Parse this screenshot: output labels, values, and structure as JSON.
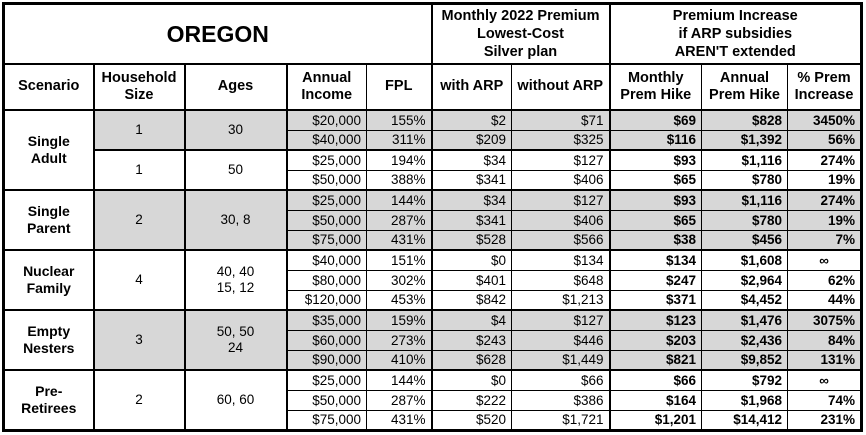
{
  "sections": {
    "title": "OREGON",
    "premium": "Monthly 2022 Premium\nLowest-Cost\nSilver plan",
    "increase": "Premium Increase\nif ARP subsidies\nAREN'T extended"
  },
  "columns": [
    "Scenario",
    "Household\nSize",
    "Ages",
    "Annual\nIncome",
    "FPL",
    "with ARP",
    "without ARP",
    "Monthly\nPrem Hike",
    "Annual\nPrem Hike",
    "% Prem\nIncrease"
  ],
  "colors": {
    "shade_gray": "#d7d7d7",
    "border_black": "#000000",
    "background": "#ffffff"
  },
  "groups": [
    {
      "scenario": "Single\nAdult",
      "subgroups": [
        {
          "household_size": "1",
          "ages": "30",
          "shaded": true,
          "rows": [
            {
              "income": "$20,000",
              "fpl": "155%",
              "with_arp": "$2",
              "without_arp": "$71",
              "monthly_hike": "$69",
              "annual_hike": "$828",
              "pct_increase": "3450%"
            },
            {
              "income": "$40,000",
              "fpl": "311%",
              "with_arp": "$209",
              "without_arp": "$325",
              "monthly_hike": "$116",
              "annual_hike": "$1,392",
              "pct_increase": "56%"
            }
          ]
        },
        {
          "household_size": "1",
          "ages": "50",
          "shaded": false,
          "rows": [
            {
              "income": "$25,000",
              "fpl": "194%",
              "with_arp": "$34",
              "without_arp": "$127",
              "monthly_hike": "$93",
              "annual_hike": "$1,116",
              "pct_increase": "274%"
            },
            {
              "income": "$50,000",
              "fpl": "388%",
              "with_arp": "$341",
              "without_arp": "$406",
              "monthly_hike": "$65",
              "annual_hike": "$780",
              "pct_increase": "19%"
            }
          ]
        }
      ]
    },
    {
      "scenario": "Single\nParent",
      "subgroups": [
        {
          "household_size": "2",
          "ages": "30, 8",
          "shaded": true,
          "rows": [
            {
              "income": "$25,000",
              "fpl": "144%",
              "with_arp": "$34",
              "without_arp": "$127",
              "monthly_hike": "$93",
              "annual_hike": "$1,116",
              "pct_increase": "274%"
            },
            {
              "income": "$50,000",
              "fpl": "287%",
              "with_arp": "$341",
              "without_arp": "$406",
              "monthly_hike": "$65",
              "annual_hike": "$780",
              "pct_increase": "19%"
            },
            {
              "income": "$75,000",
              "fpl": "431%",
              "with_arp": "$528",
              "without_arp": "$566",
              "monthly_hike": "$38",
              "annual_hike": "$456",
              "pct_increase": "7%"
            }
          ]
        }
      ]
    },
    {
      "scenario": "Nuclear\nFamily",
      "subgroups": [
        {
          "household_size": "4",
          "ages": "40, 40\n15, 12",
          "shaded": false,
          "rows": [
            {
              "income": "$40,000",
              "fpl": "151%",
              "with_arp": "$0",
              "without_arp": "$134",
              "monthly_hike": "$134",
              "annual_hike": "$1,608",
              "pct_increase": "∞"
            },
            {
              "income": "$80,000",
              "fpl": "302%",
              "with_arp": "$401",
              "without_arp": "$648",
              "monthly_hike": "$247",
              "annual_hike": "$2,964",
              "pct_increase": "62%"
            },
            {
              "income": "$120,000",
              "fpl": "453%",
              "with_arp": "$842",
              "without_arp": "$1,213",
              "monthly_hike": "$371",
              "annual_hike": "$4,452",
              "pct_increase": "44%"
            }
          ]
        }
      ]
    },
    {
      "scenario": "Empty\nNesters",
      "subgroups": [
        {
          "household_size": "3",
          "ages": "50, 50\n24",
          "shaded": true,
          "rows": [
            {
              "income": "$35,000",
              "fpl": "159%",
              "with_arp": "$4",
              "without_arp": "$127",
              "monthly_hike": "$123",
              "annual_hike": "$1,476",
              "pct_increase": "3075%"
            },
            {
              "income": "$60,000",
              "fpl": "273%",
              "with_arp": "$243",
              "without_arp": "$446",
              "monthly_hike": "$203",
              "annual_hike": "$2,436",
              "pct_increase": "84%"
            },
            {
              "income": "$90,000",
              "fpl": "410%",
              "with_arp": "$628",
              "without_arp": "$1,449",
              "monthly_hike": "$821",
              "annual_hike": "$9,852",
              "pct_increase": "131%"
            }
          ]
        }
      ]
    },
    {
      "scenario": "Pre-\nRetirees",
      "subgroups": [
        {
          "household_size": "2",
          "ages": "60, 60",
          "shaded": false,
          "rows": [
            {
              "income": "$25,000",
              "fpl": "144%",
              "with_arp": "$0",
              "without_arp": "$66",
              "monthly_hike": "$66",
              "annual_hike": "$792",
              "pct_increase": "∞"
            },
            {
              "income": "$50,000",
              "fpl": "287%",
              "with_arp": "$222",
              "without_arp": "$386",
              "monthly_hike": "$164",
              "annual_hike": "$1,968",
              "pct_increase": "74%"
            },
            {
              "income": "$75,000",
              "fpl": "431%",
              "with_arp": "$520",
              "without_arp": "$1,721",
              "monthly_hike": "$1,201",
              "annual_hike": "$14,412",
              "pct_increase": "231%"
            }
          ]
        }
      ]
    }
  ]
}
